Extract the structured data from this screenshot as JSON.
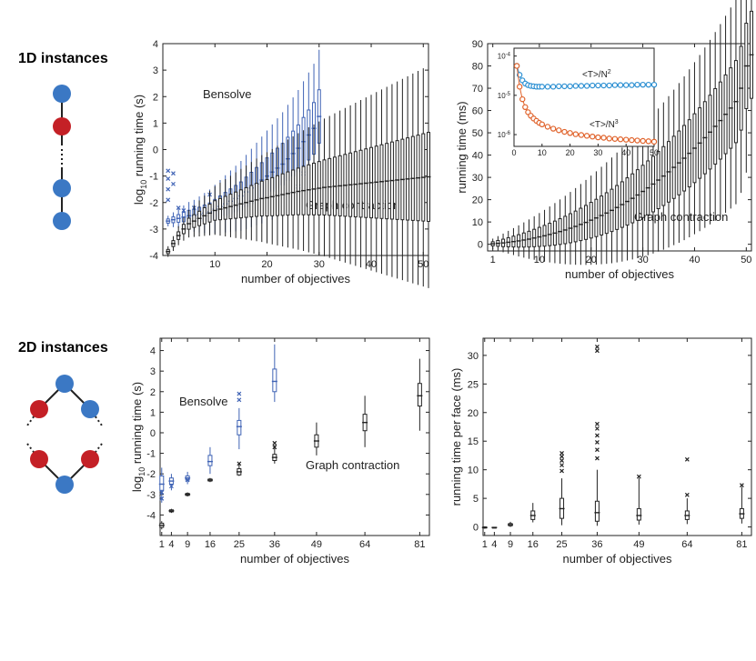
{
  "rows": [
    {
      "label": "1D instances"
    },
    {
      "label": "2D instances"
    }
  ],
  "colors": {
    "bensolve": "#3f63b5",
    "graph": "#222222",
    "node_blue": "#3b78c4",
    "node_red": "#c42026",
    "inset_blue": "#2b8fd2",
    "inset_red": "#e0622a"
  },
  "chart_data": [
    {
      "id": "p1",
      "type": "box",
      "xlabel": "number of objectives",
      "ylabel_main": "running time (s)",
      "ylabel_prefix": "log",
      "ylabel_sub": "10",
      "xlim": [
        0,
        51
      ],
      "ylim": [
        -4,
        4
      ],
      "xticks": [
        "10",
        "20",
        "30",
        "40",
        "50"
      ],
      "xtick_values": [
        10,
        20,
        30,
        40,
        50
      ],
      "yticks": [
        "-4",
        "-3",
        "-2",
        "-1",
        "0",
        "1",
        "2",
        "3",
        "4"
      ],
      "ytick_values": [
        -4,
        -3,
        -2,
        -1,
        0,
        1,
        2,
        3,
        4
      ],
      "annotations": [
        "Bensolve",
        "Graph contraction"
      ],
      "series": [
        {
          "name": "Bensolve",
          "x": [
            1,
            2,
            3,
            4,
            5,
            6,
            7,
            8,
            9,
            10,
            11,
            12,
            13,
            14,
            15,
            16,
            17,
            18,
            19,
            20,
            21,
            22,
            23,
            24,
            25,
            26,
            27,
            28,
            29,
            30
          ],
          "median": [
            -2.7,
            -2.65,
            -2.6,
            -2.55,
            -2.5,
            -2.5,
            -2.45,
            -2.4,
            -2.35,
            -2.25,
            -2.15,
            -2.05,
            -1.95,
            -1.85,
            -1.75,
            -1.6,
            -1.45,
            -1.3,
            -1.15,
            -1.0,
            -0.85,
            -0.7,
            -0.55,
            -0.35,
            -0.15,
            0.05,
            0.3,
            0.55,
            0.8,
            1.25
          ],
          "outliers": [
            [
              1,
              -0.8
            ],
            [
              1,
              -1.1
            ],
            [
              1,
              -1.5
            ],
            [
              1,
              -1.9
            ],
            [
              2,
              -1.3
            ],
            [
              2,
              -0.9
            ],
            [
              3,
              -2.2
            ],
            [
              4,
              -2.3
            ],
            [
              6,
              -2.2
            ],
            [
              9,
              -1.7
            ],
            [
              26,
              -1.4
            ],
            [
              27,
              -0.9
            ]
          ]
        },
        {
          "name": "Graph contraction",
          "x": [
            1,
            2,
            3,
            4,
            5,
            6,
            7,
            8,
            9,
            10,
            11,
            12,
            13,
            14,
            15,
            16,
            17,
            18,
            19,
            20,
            21,
            22,
            23,
            24,
            25,
            26,
            27,
            28,
            29,
            30,
            31,
            32,
            33,
            34,
            35,
            36,
            37,
            38,
            39,
            40,
            41,
            42,
            43,
            44,
            45,
            46,
            47,
            48,
            49,
            50,
            51
          ],
          "median": [
            -3.85,
            -3.55,
            -3.25,
            -3.0,
            -2.8,
            -2.7,
            -2.6,
            -2.5,
            -2.4,
            -2.3,
            -2.25,
            -2.2,
            -2.15,
            -2.1,
            -2.05,
            -2.0,
            -1.95,
            -1.9,
            -1.85,
            -1.82,
            -1.78,
            -1.74,
            -1.7,
            -1.66,
            -1.62,
            -1.58,
            -1.55,
            -1.52,
            -1.49,
            -1.46,
            -1.43,
            -1.41,
            -1.39,
            -1.37,
            -1.35,
            -1.33,
            -1.31,
            -1.29,
            -1.27,
            -1.25,
            -1.23,
            -1.21,
            -1.19,
            -1.17,
            -1.15,
            -1.13,
            -1.11,
            -1.09,
            -1.07,
            -1.05,
            -1.03
          ]
        }
      ]
    },
    {
      "id": "p2",
      "type": "box",
      "xlabel": "number of objectives",
      "ylabel_main": "running time (ms)",
      "xlim": [
        0,
        51
      ],
      "ylim": [
        -3,
        90
      ],
      "xticks": [
        "1",
        "10",
        "20",
        "30",
        "40",
        "50"
      ],
      "xtick_values": [
        1,
        10,
        20,
        30,
        40,
        50
      ],
      "yticks": [
        "0",
        "10",
        "20",
        "30",
        "40",
        "50",
        "60",
        "70",
        "80",
        "90"
      ],
      "ytick_values": [
        0,
        10,
        20,
        30,
        40,
        50,
        60,
        70,
        80,
        90
      ],
      "annotations": [
        "Graph contraction"
      ],
      "series": [
        {
          "name": "Graph contraction",
          "x": [
            1,
            2,
            3,
            4,
            5,
            6,
            7,
            8,
            9,
            10,
            11,
            12,
            13,
            14,
            15,
            16,
            17,
            18,
            19,
            20,
            21,
            22,
            23,
            24,
            25,
            26,
            27,
            28,
            29,
            30,
            31,
            32,
            33,
            34,
            35,
            36,
            37,
            38,
            39,
            40,
            41,
            42,
            43,
            44,
            45,
            46,
            47,
            48,
            49,
            50,
            51
          ],
          "median": [
            0.2,
            0.4,
            0.6,
            0.9,
            1.2,
            1.5,
            1.9,
            2.3,
            2.8,
            3.3,
            3.8,
            4.4,
            5.0,
            5.7,
            6.4,
            7.2,
            8.0,
            8.9,
            9.8,
            10.8,
            11.8,
            12.9,
            14.0,
            15.2,
            16.5,
            17.8,
            19.2,
            20.6,
            22.1,
            23.7,
            25.3,
            27.0,
            28.8,
            30.6,
            32.5,
            34.5,
            36.5,
            38.6,
            40.8,
            43.1,
            45.4,
            47.8,
            50.3,
            52.9,
            55.5,
            58.3,
            61.1,
            64.0,
            70.0,
            80.0,
            85.0
          ]
        }
      ],
      "inset": {
        "type": "line",
        "xlim": [
          0,
          50
        ],
        "ylog": true,
        "ylim_log10": [
          -6.3,
          -3.8
        ],
        "xticks": [
          "0",
          "10",
          "20",
          "30",
          "40",
          "50"
        ],
        "xtick_values": [
          0,
          10,
          20,
          30,
          40,
          50
        ],
        "yticks": [
          {
            "base": "10",
            "exp": "-4",
            "value": -4
          },
          {
            "base": "10",
            "exp": "-5",
            "value": -5
          },
          {
            "base": "10",
            "exp": "-6",
            "value": -6
          }
        ],
        "labels": [
          {
            "text": "<T>/N",
            "sup": "2"
          },
          {
            "text": "<T>/N",
            "sup": "3"
          }
        ],
        "series": [
          {
            "label_index": 0,
            "x": [
              1,
              2,
              3,
              4,
              5,
              6,
              7,
              8,
              9,
              10,
              12,
              14,
              16,
              18,
              20,
              22,
              24,
              26,
              28,
              30,
              32,
              34,
              36,
              38,
              40,
              42,
              44,
              46,
              48,
              50
            ],
            "log10_y": [
              -4.25,
              -4.48,
              -4.62,
              -4.7,
              -4.74,
              -4.76,
              -4.77,
              -4.78,
              -4.78,
              -4.78,
              -4.78,
              -4.78,
              -4.77,
              -4.77,
              -4.77,
              -4.76,
              -4.76,
              -4.76,
              -4.75,
              -4.75,
              -4.75,
              -4.75,
              -4.74,
              -4.74,
              -4.74,
              -4.74,
              -4.73,
              -4.73,
              -4.73,
              -4.73
            ]
          },
          {
            "label_index": 1,
            "x": [
              1,
              2,
              3,
              4,
              5,
              6,
              7,
              8,
              9,
              10,
              12,
              14,
              16,
              18,
              20,
              22,
              24,
              26,
              28,
              30,
              32,
              34,
              36,
              38,
              40,
              42,
              44,
              46,
              48,
              50
            ],
            "log10_y": [
              -4.25,
              -4.78,
              -5.1,
              -5.3,
              -5.43,
              -5.52,
              -5.59,
              -5.65,
              -5.7,
              -5.74,
              -5.8,
              -5.85,
              -5.89,
              -5.93,
              -5.96,
              -5.99,
              -6.01,
              -6.03,
              -6.05,
              -6.07,
              -6.08,
              -6.1,
              -6.11,
              -6.12,
              -6.13,
              -6.14,
              -6.15,
              -6.16,
              -6.17,
              -6.18
            ]
          }
        ]
      }
    },
    {
      "id": "p3",
      "type": "box",
      "xlabel": "number of objectives",
      "ylabel_main": "running time (s)",
      "ylabel_prefix": "log",
      "ylabel_sub": "10",
      "xlim": [
        0.5,
        84
      ],
      "ylim": [
        -5,
        4.6
      ],
      "xticks": [
        "1",
        "4",
        "9",
        "16",
        "25",
        "36",
        "49",
        "64",
        "81"
      ],
      "xtick_values": [
        1,
        4,
        9,
        16,
        25,
        36,
        49,
        64,
        81
      ],
      "yticks": [
        "-4",
        "-3",
        "-2",
        "-1",
        "0",
        "1",
        "2",
        "3",
        "4"
      ],
      "ytick_values": [
        -4,
        -3,
        -2,
        -1,
        0,
        1,
        2,
        3,
        4
      ],
      "annotations": [
        "Bensolve",
        "Graph contraction"
      ],
      "series": [
        {
          "name": "Bensolve",
          "x": [
            1,
            4,
            9,
            16,
            25,
            36
          ],
          "median": [
            -2.5,
            -2.35,
            -2.2,
            -1.4,
            0.3,
            2.5
          ],
          "q1": [
            -2.8,
            -2.5,
            -2.3,
            -1.6,
            -0.1,
            2.0
          ],
          "q3": [
            -2.1,
            -2.2,
            -2.1,
            -1.1,
            0.6,
            3.1
          ],
          "lo": [
            -3.4,
            -2.8,
            -2.5,
            -2.0,
            -0.8,
            1.5
          ],
          "hi": [
            -1.7,
            -2.0,
            -1.9,
            -0.7,
            1.2,
            4.3
          ],
          "outliers": [
            [
              1,
              -2.9
            ],
            [
              1,
              -3.2
            ],
            [
              4,
              -2.6
            ],
            [
              9,
              -2.3
            ],
            [
              25,
              1.6
            ],
            [
              25,
              1.9
            ]
          ]
        },
        {
          "name": "Graph contraction",
          "x": [
            1,
            4,
            9,
            16,
            25,
            36,
            49,
            64,
            81
          ],
          "median": [
            -4.5,
            -3.8,
            -3.0,
            -2.3,
            -1.9,
            -1.2,
            -0.4,
            0.5,
            1.8
          ],
          "q1": [
            -4.6,
            -3.85,
            -3.05,
            -2.35,
            -2.05,
            -1.35,
            -0.7,
            0.1,
            1.3
          ],
          "q3": [
            -4.4,
            -3.75,
            -2.95,
            -2.25,
            -1.75,
            -1.05,
            -0.1,
            0.9,
            2.4
          ],
          "lo": [
            -4.7,
            -3.9,
            -3.1,
            -2.4,
            -2.1,
            -1.5,
            -1.1,
            -0.7,
            0.1
          ],
          "hi": [
            -4.3,
            -3.7,
            -2.9,
            -2.2,
            -1.5,
            -0.6,
            0.5,
            1.8,
            3.6
          ],
          "outliers": [
            [
              25,
              -1.5
            ],
            [
              36,
              -0.7
            ],
            [
              36,
              -0.5
            ]
          ]
        }
      ]
    },
    {
      "id": "p4",
      "type": "box",
      "xlabel": "number of objectives",
      "ylabel_main": "running time per face (ms)",
      "xlim": [
        0.5,
        84
      ],
      "ylim": [
        -1.5,
        33
      ],
      "xticks": [
        "1",
        "4",
        "9",
        "16",
        "25",
        "36",
        "49",
        "64",
        "81"
      ],
      "xtick_values": [
        1,
        4,
        9,
        16,
        25,
        36,
        49,
        64,
        81
      ],
      "yticks": [
        "0",
        "5",
        "10",
        "15",
        "20",
        "25",
        "30"
      ],
      "ytick_values": [
        0,
        5,
        10,
        15,
        20,
        25,
        30
      ],
      "annotations": [],
      "series": [
        {
          "name": "Graph contraction",
          "x": [
            1,
            4,
            9,
            16,
            25,
            36,
            49,
            64,
            81
          ],
          "median": [
            -0.1,
            -0.1,
            0.4,
            2.0,
            3.2,
            2.5,
            2.0,
            2.0,
            2.3
          ],
          "q1": [
            -0.2,
            -0.15,
            0.2,
            1.3,
            1.5,
            1.0,
            1.2,
            1.3,
            1.5
          ],
          "q3": [
            0.0,
            -0.05,
            0.6,
            2.8,
            5.0,
            4.5,
            3.2,
            2.8,
            3.2
          ],
          "lo": [
            -0.3,
            -0.2,
            0.0,
            0.8,
            0.3,
            0.2,
            0.4,
            0.5,
            0.6
          ],
          "hi": [
            0.1,
            0.0,
            0.9,
            4.2,
            8.5,
            10.0,
            8.5,
            5.0,
            7.0
          ],
          "outliers": [
            [
              25,
              9.8
            ],
            [
              25,
              10.8
            ],
            [
              25,
              11.6
            ],
            [
              25,
              12.3
            ],
            [
              25,
              12.9
            ],
            [
              36,
              12.0
            ],
            [
              36,
              13.5
            ],
            [
              36,
              14.8
            ],
            [
              36,
              16.0
            ],
            [
              36,
              17.2
            ],
            [
              36,
              18.0
            ],
            [
              36,
              30.8
            ],
            [
              36,
              31.5
            ],
            [
              49,
              8.8
            ],
            [
              64,
              5.6
            ],
            [
              64,
              11.8
            ],
            [
              81,
              7.3
            ]
          ]
        }
      ]
    }
  ]
}
